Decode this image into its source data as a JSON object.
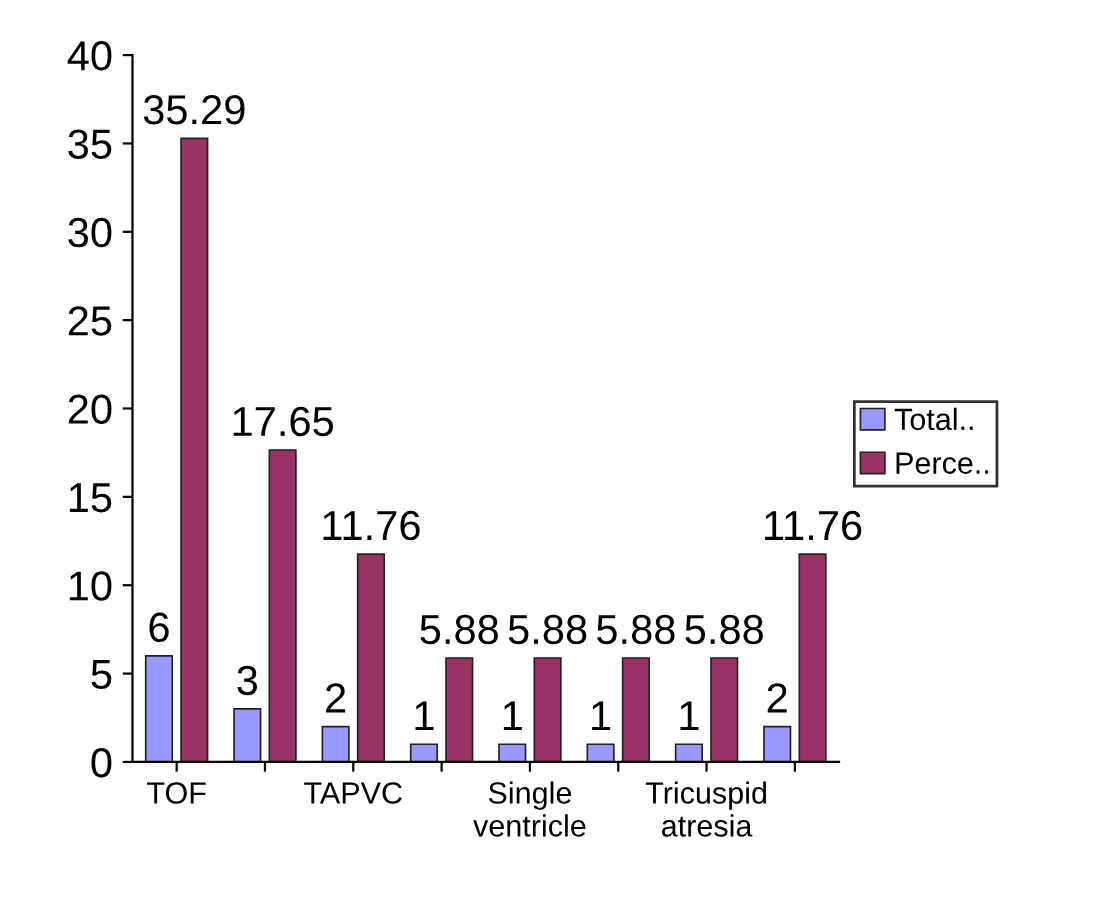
{
  "chart_data": {
    "type": "bar",
    "categories": [
      "TOF",
      null,
      "TAPVC",
      null,
      "Single ventricle",
      null,
      "Tricuspid atresia",
      null
    ],
    "series": [
      {
        "name": "Total..",
        "color": "#9999ff",
        "values": [
          6,
          3,
          2,
          1,
          1,
          1,
          1,
          2
        ],
        "value_labels": [
          "6",
          "3",
          "2",
          "1",
          "1",
          "1",
          "1",
          "2"
        ]
      },
      {
        "name": "Perce..",
        "color": "#993366",
        "values": [
          35.29,
          17.65,
          11.76,
          5.88,
          5.88,
          5.88,
          5.88,
          11.76
        ],
        "value_labels": [
          "35.29",
          "17.65",
          "11.76",
          "5.88",
          "5.88",
          "5.88",
          "5.88",
          "11.76"
        ]
      }
    ],
    "ylim": [
      0,
      40
    ],
    "yticks": [
      0,
      5,
      10,
      15,
      20,
      25,
      30,
      35,
      40
    ],
    "grid": false,
    "legend": "right"
  }
}
